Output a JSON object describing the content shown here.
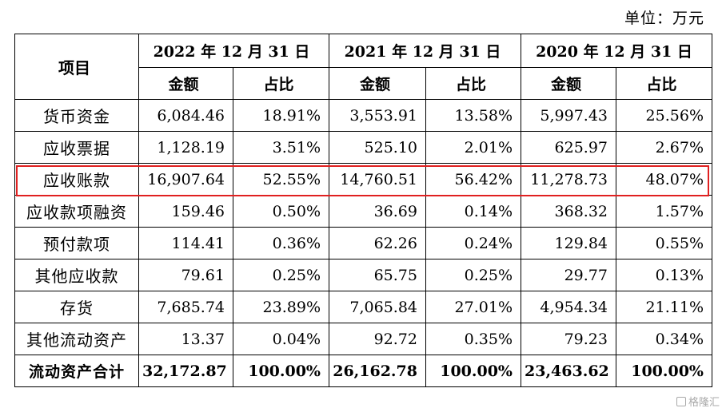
{
  "unit_label": "单位：万元",
  "header": {
    "item": "项目",
    "years": [
      "2022 年 12 月 31 日",
      "2021 年 12 月 31 日",
      "2020 年 12 月 31 日"
    ],
    "amount": "金额",
    "ratio": "占比"
  },
  "rows": [
    {
      "name": "货币资金",
      "values": [
        "6,084.46",
        "18.91%",
        "3,553.91",
        "13.58%",
        "5,997.43",
        "25.56%"
      ]
    },
    {
      "name": "应收票据",
      "values": [
        "1,128.19",
        "3.51%",
        "525.10",
        "2.01%",
        "625.97",
        "2.67%"
      ]
    },
    {
      "name": "应收账款",
      "values": [
        "16,907.64",
        "52.55%",
        "14,760.51",
        "56.42%",
        "11,278.73",
        "48.07%"
      ]
    },
    {
      "name": "应收款项融资",
      "values": [
        "159.46",
        "0.50%",
        "36.69",
        "0.14%",
        "368.32",
        "1.57%"
      ]
    },
    {
      "name": "预付款项",
      "values": [
        "114.41",
        "0.36%",
        "62.26",
        "0.24%",
        "129.84",
        "0.55%"
      ]
    },
    {
      "name": "其他应收款",
      "values": [
        "79.61",
        "0.25%",
        "65.75",
        "0.25%",
        "29.77",
        "0.13%"
      ]
    },
    {
      "name": "存货",
      "values": [
        "7,685.74",
        "23.89%",
        "7,065.84",
        "27.01%",
        "4,954.34",
        "21.11%"
      ]
    },
    {
      "name": "其他流动资产",
      "values": [
        "13.37",
        "0.04%",
        "92.72",
        "0.35%",
        "79.23",
        "0.34%"
      ]
    }
  ],
  "total": {
    "name": "流动资产合计",
    "values": [
      "32,172.87",
      "100.00%",
      "26,162.78",
      "100.00%",
      "23,463.62",
      "100.00%"
    ]
  },
  "highlight_color": "#e02020",
  "watermark": "格隆汇"
}
